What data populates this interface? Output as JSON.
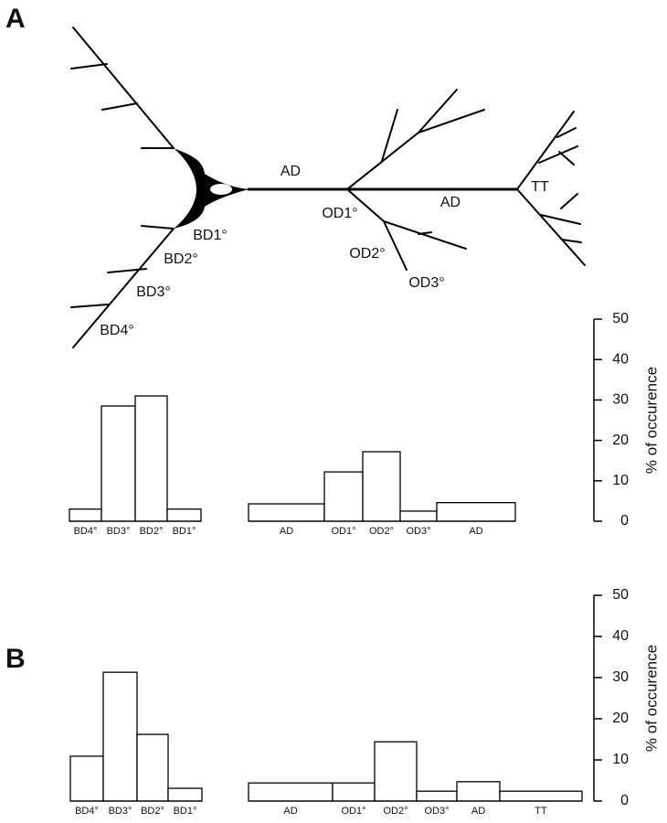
{
  "figure": {
    "panel_labels": [
      "A",
      "B"
    ],
    "diagram_labels": [
      "AD",
      "BD1°",
      "BD2°",
      "BD3°",
      "BD4°",
      "OD1°",
      "OD2°",
      "OD3°",
      "AD",
      "TT"
    ]
  },
  "chart_data": [
    {
      "type": "bar",
      "categories": [
        "BD4°",
        "BD3°",
        "BD2°",
        "BD1°"
      ],
      "values": [
        3,
        28.5,
        31,
        3
      ],
      "ylim": [
        0,
        50
      ]
    },
    {
      "type": "bar",
      "categories": [
        "AD",
        "OD1°",
        "OD2°",
        "OD3°",
        "AD"
      ],
      "values": [
        4.3,
        12.2,
        17.2,
        2.5,
        4.6
      ],
      "ylim": [
        0,
        50
      ],
      "yticks": [
        0,
        10,
        20,
        30,
        40,
        50
      ],
      "y_label": "% of occurence"
    },
    {
      "type": "bar",
      "categories": [
        "BD4°",
        "BD3°",
        "BD2°",
        "BD1°"
      ],
      "values": [
        10.9,
        31.3,
        16.2,
        3.1
      ],
      "ylim": [
        0,
        50
      ]
    },
    {
      "type": "bar",
      "categories": [
        "AD",
        "OD1°",
        "OD2°",
        "OD3°",
        "AD",
        "TT"
      ],
      "values": [
        4.4,
        4.4,
        14.4,
        2.4,
        4.7,
        2.4
      ],
      "ylim": [
        0,
        50
      ],
      "yticks": [
        0,
        10,
        20,
        30,
        40,
        50
      ],
      "y_label": "% of occurence"
    }
  ]
}
